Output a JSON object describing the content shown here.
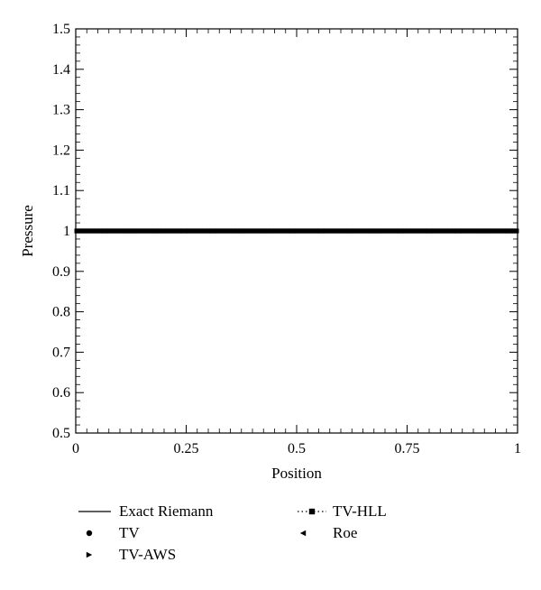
{
  "chart_data": {
    "type": "line",
    "title": "",
    "xlabel": "Position",
    "ylabel": "Pressure",
    "xlim": [
      0,
      1
    ],
    "ylim": [
      0.5,
      1.5
    ],
    "xticks": [
      0,
      0.25,
      0.5,
      0.75,
      1
    ],
    "xtick_labels": [
      "0",
      "0.25",
      "0.5",
      "0.75",
      "1"
    ],
    "yticks": [
      0.5,
      0.6,
      0.7,
      0.8,
      0.9,
      1.0,
      1.1,
      1.2,
      1.3,
      1.4,
      1.5
    ],
    "ytick_labels": [
      "0.5",
      "0.6",
      "0.7",
      "0.8",
      "0.9",
      "1",
      "1.1",
      "1.2",
      "1.3",
      "1.4",
      "1.5"
    ],
    "grid": false,
    "legend_position": "below",
    "series": [
      {
        "name": "Exact Riemann",
        "style": "line",
        "x": [
          0,
          1
        ],
        "y": [
          1,
          1
        ]
      },
      {
        "name": "TV",
        "style": "circle",
        "x_range": [
          0,
          1
        ],
        "num_points": 200,
        "y_constant": 1
      },
      {
        "name": "TV-AWS",
        "style": "triangle-right",
        "x_range": [
          0,
          1
        ],
        "num_points": 200,
        "y_constant": 1
      },
      {
        "name": "TV-HLL",
        "style": "dotted-square",
        "x_range": [
          0,
          1
        ],
        "num_points": 200,
        "y_constant": 1
      },
      {
        "name": "Roe",
        "style": "triangle-left",
        "x_range": [
          0,
          1
        ],
        "num_points": 200,
        "y_constant": 1
      }
    ],
    "line_color": "#000000"
  }
}
